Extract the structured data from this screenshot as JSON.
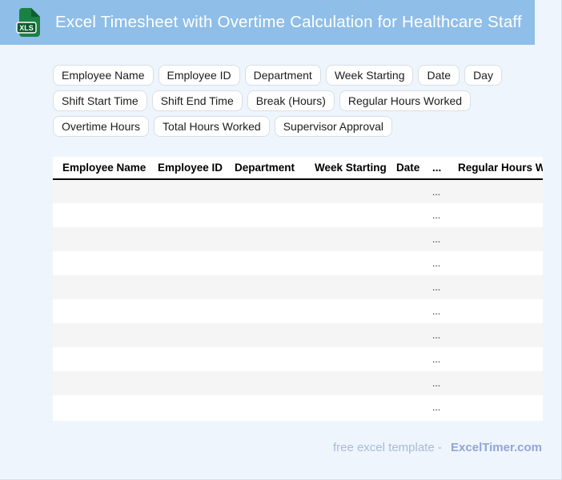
{
  "theme": {
    "header_bg": "#8FBEE8",
    "page_bg": "#EFF5FD",
    "page_border": "#D9E0EA",
    "chip_border": "#D9DEE5",
    "row_stripe": "#F5F5F5",
    "table_header_border": "#000000",
    "footer_text_color": "#ABB8DA",
    "footer_brand_color": "#92A4D8",
    "icon_body": "#1B8044",
    "icon_fold": "#0D5F2F",
    "icon_badge": "#0B5C2D"
  },
  "header": {
    "title": "Excel Timesheet with Overtime Calculation for Healthcare Staff",
    "icon": {
      "label": "XLS"
    }
  },
  "field_chips": [
    "Employee Name",
    "Employee ID",
    "Department",
    "Week Starting",
    "Date",
    "Day",
    "Shift Start Time",
    "Shift End Time",
    "Break (Hours)",
    "Regular Hours Worked",
    "Overtime Hours",
    "Total Hours Worked",
    "Supervisor Approval"
  ],
  "table": {
    "columns": [
      "Employee Name",
      "Employee ID",
      "Department",
      "Week Starting",
      "Date",
      "...",
      "Regular Hours Worked"
    ],
    "rows": [
      [
        "",
        "",
        "",
        "",
        "",
        "...",
        ""
      ],
      [
        "",
        "",
        "",
        "",
        "",
        "...",
        ""
      ],
      [
        "",
        "",
        "",
        "",
        "",
        "...",
        ""
      ],
      [
        "",
        "",
        "",
        "",
        "",
        "...",
        ""
      ],
      [
        "",
        "",
        "",
        "",
        "",
        "...",
        ""
      ],
      [
        "",
        "",
        "",
        "",
        "",
        "...",
        ""
      ],
      [
        "",
        "",
        "",
        "",
        "",
        "...",
        ""
      ],
      [
        "",
        "",
        "",
        "",
        "",
        "...",
        ""
      ],
      [
        "",
        "",
        "",
        "",
        "",
        "...",
        ""
      ],
      [
        "",
        "",
        "",
        "",
        "",
        "...",
        ""
      ]
    ]
  },
  "footer": {
    "text": "free excel template -",
    "brand": "ExcelTimer.com"
  }
}
